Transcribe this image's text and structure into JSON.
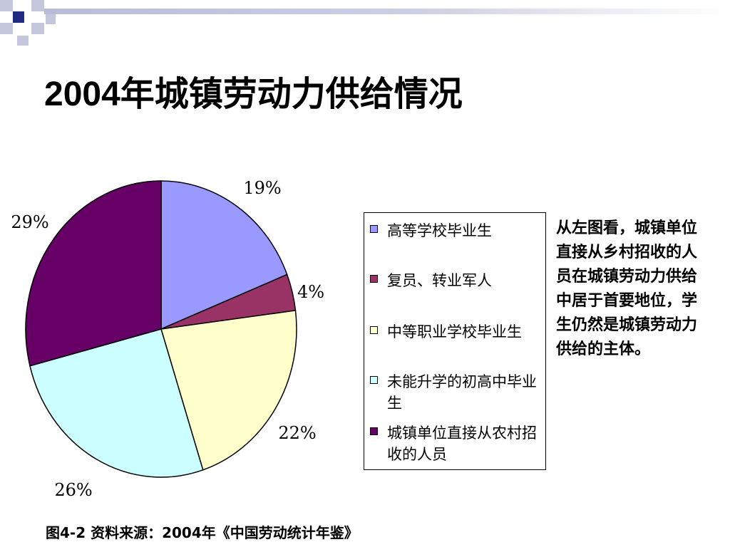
{
  "slide": {
    "title": "2004年城镇劳动力供给情况",
    "caption": "图4-2  资料来源：2004年《中国劳动统计年鉴》",
    "side_text": "从左图看，城镇单位直接从乡村招收的人员在城镇劳动力供给中居于首要地位，学生仍然是城镇劳动力供给的主体。"
  },
  "colors": {
    "title_bar": "#b8bcd6",
    "deco_dark": "#1f2a80",
    "deco_light": "#c5c8dd"
  },
  "chart_data": {
    "type": "pie",
    "title": "",
    "legend_position": "right",
    "start_angle_deg": 0,
    "direction": "clockwise",
    "slices": [
      {
        "label": "高等学校毕业生",
        "value": 19,
        "display": "19%",
        "color": "#9999ff"
      },
      {
        "label": "复员、转业军人",
        "value": 4,
        "display": "4%",
        "color": "#993366"
      },
      {
        "label": "中等职业学校毕业生",
        "value": 22,
        "display": "22%",
        "color": "#ffffcc"
      },
      {
        "label": "未能升学的初高中毕业生",
        "value": 26,
        "display": "26%",
        "color": "#ccffff"
      },
      {
        "label": "城镇单位直接从农村招收的人员",
        "value": 29,
        "display": "29%",
        "color": "#660066"
      }
    ]
  }
}
